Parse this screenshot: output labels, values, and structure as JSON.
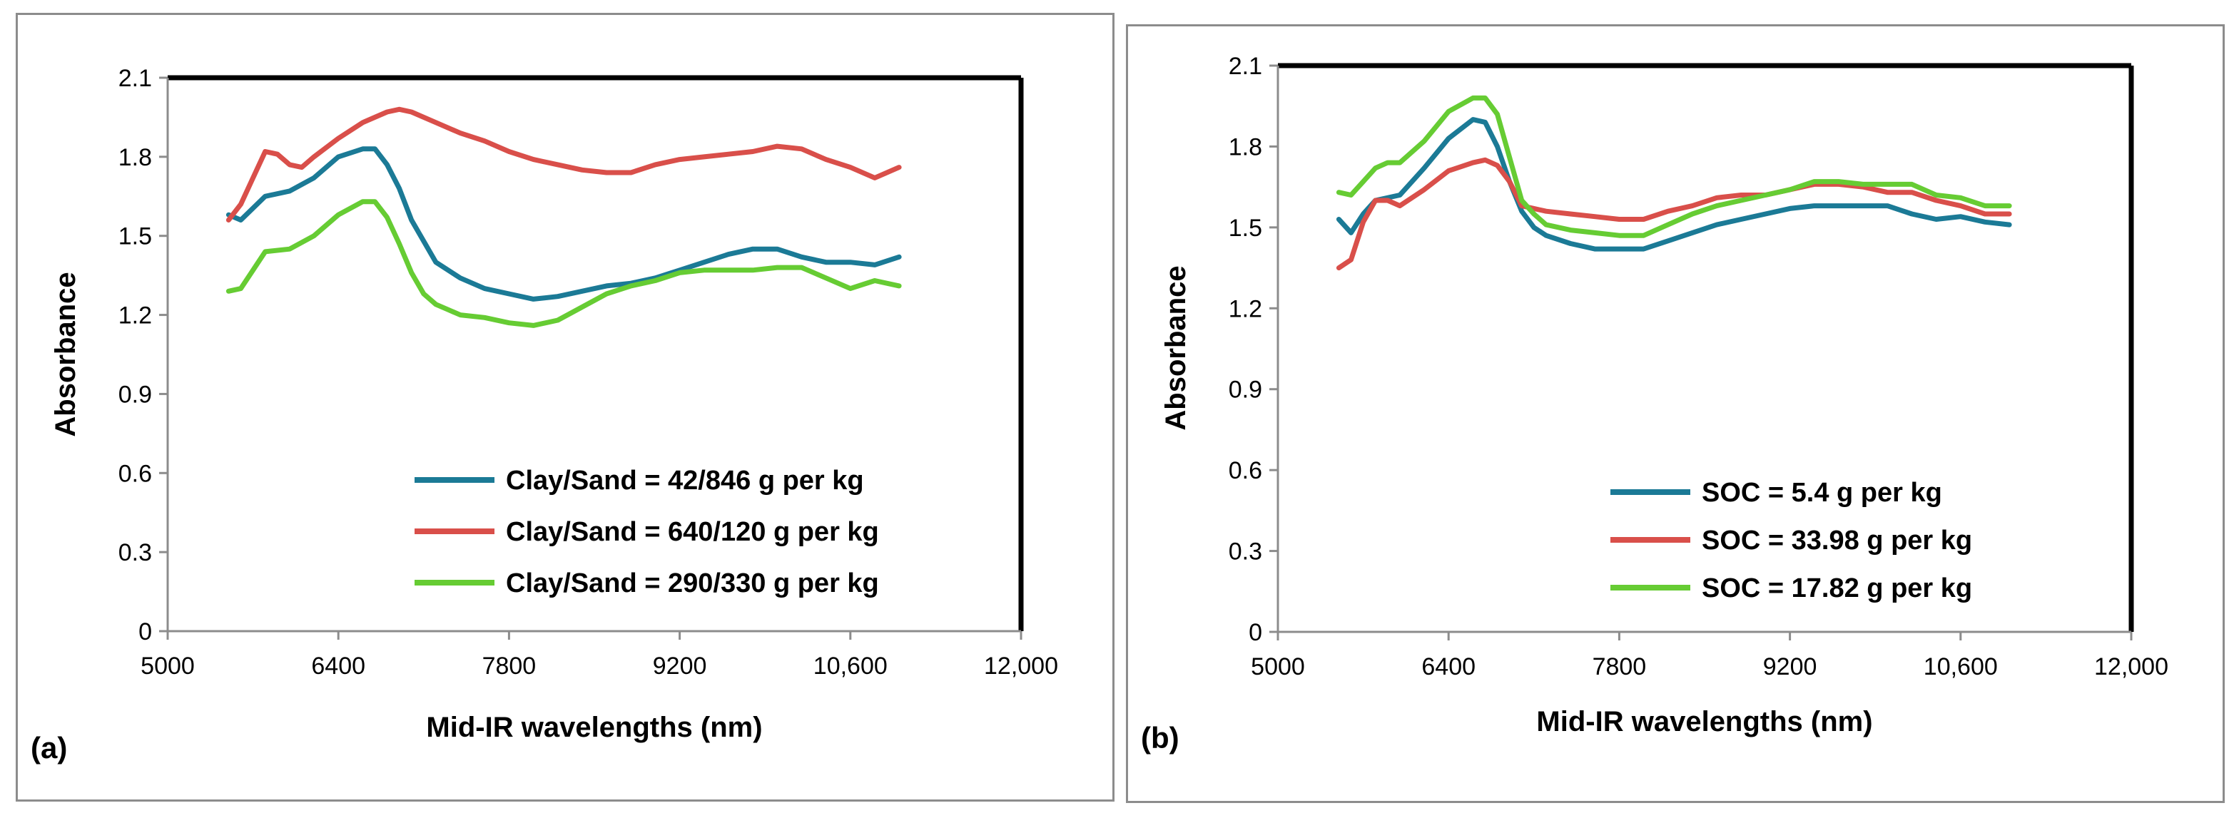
{
  "chart_data": [
    {
      "type": "line",
      "panel_label": "(a)",
      "xlabel": "Mid-IR wavelengths (nm)",
      "ylabel": "Absorbance",
      "xlim": [
        5000,
        12000
      ],
      "ylim": [
        0,
        2.1
      ],
      "x_ticks": [
        5000,
        6400,
        7800,
        9200,
        10600,
        12000
      ],
      "x_tick_labels": [
        "5000",
        "6400",
        "7800",
        "9200",
        "10,600",
        "12,000"
      ],
      "y_ticks": [
        0,
        0.3,
        0.6,
        0.9,
        1.2,
        1.5,
        1.8,
        2.1
      ],
      "y_tick_labels": [
        "0",
        "0.3",
        "0.6",
        "0.9",
        "1.2",
        "1.5",
        "1.8",
        "2.1"
      ],
      "grid": false,
      "legend_position": "bottom-right",
      "series": [
        {
          "name": "Clay/Sand = 42/846 g per kg",
          "color": "#1b7a96",
          "x": [
            5500,
            5600,
            5800,
            6000,
            6200,
            6400,
            6600,
            6700,
            6800,
            6900,
            7000,
            7100,
            7200,
            7400,
            7600,
            7800,
            8000,
            8200,
            8400,
            8600,
            8800,
            9000,
            9200,
            9400,
            9600,
            9800,
            10000,
            10200,
            10400,
            10600,
            10800,
            11000
          ],
          "y": [
            1.58,
            1.56,
            1.65,
            1.67,
            1.72,
            1.8,
            1.83,
            1.83,
            1.77,
            1.68,
            1.56,
            1.48,
            1.4,
            1.34,
            1.3,
            1.28,
            1.26,
            1.27,
            1.29,
            1.31,
            1.32,
            1.34,
            1.37,
            1.4,
            1.43,
            1.45,
            1.45,
            1.42,
            1.4,
            1.4,
            1.39,
            1.42
          ]
        },
        {
          "name": "Clay/Sand = 640/120 g per kg",
          "color": "#d94f4a",
          "x": [
            5500,
            5600,
            5700,
            5800,
            5900,
            6000,
            6100,
            6200,
            6400,
            6600,
            6800,
            6900,
            7000,
            7200,
            7400,
            7600,
            7800,
            8000,
            8200,
            8400,
            8600,
            8800,
            9000,
            9200,
            9400,
            9600,
            9800,
            10000,
            10200,
            10400,
            10600,
            10800,
            11000
          ],
          "y": [
            1.56,
            1.62,
            1.72,
            1.82,
            1.81,
            1.77,
            1.76,
            1.8,
            1.87,
            1.93,
            1.97,
            1.98,
            1.97,
            1.93,
            1.89,
            1.86,
            1.82,
            1.79,
            1.77,
            1.75,
            1.74,
            1.74,
            1.77,
            1.79,
            1.8,
            1.81,
            1.82,
            1.84,
            1.83,
            1.79,
            1.76,
            1.72,
            1.76
          ]
        },
        {
          "name": "Clay/Sand = 290/330 g per kg",
          "color": "#66cc33",
          "x": [
            5500,
            5600,
            5700,
            5800,
            6000,
            6200,
            6400,
            6600,
            6700,
            6800,
            6900,
            7000,
            7100,
            7200,
            7300,
            7400,
            7600,
            7800,
            8000,
            8200,
            8400,
            8600,
            8800,
            9000,
            9200,
            9400,
            9600,
            9800,
            10000,
            10200,
            10400,
            10600,
            10800,
            11000
          ],
          "y": [
            1.29,
            1.3,
            1.37,
            1.44,
            1.45,
            1.5,
            1.58,
            1.63,
            1.63,
            1.57,
            1.47,
            1.36,
            1.28,
            1.24,
            1.22,
            1.2,
            1.19,
            1.17,
            1.16,
            1.18,
            1.23,
            1.28,
            1.31,
            1.33,
            1.36,
            1.37,
            1.37,
            1.37,
            1.38,
            1.38,
            1.34,
            1.3,
            1.33,
            1.31
          ]
        }
      ]
    },
    {
      "type": "line",
      "panel_label": "(b)",
      "xlabel": "Mid-IR wavelengths (nm)",
      "ylabel": "Absorbance",
      "xlim": [
        5000,
        12000
      ],
      "ylim": [
        0,
        2.1
      ],
      "x_ticks": [
        5000,
        6400,
        7800,
        9200,
        10600,
        12000
      ],
      "x_tick_labels": [
        "5000",
        "6400",
        "7800",
        "9200",
        "10,600",
        "12,000"
      ],
      "y_ticks": [
        0,
        0.3,
        0.6,
        0.9,
        1.2,
        1.5,
        1.8,
        2.1
      ],
      "y_tick_labels": [
        "0",
        "0.3",
        "0.6",
        "0.9",
        "1.2",
        "1.5",
        "1.8",
        "2.1"
      ],
      "grid": false,
      "legend_position": "bottom-right",
      "series": [
        {
          "name": "SOC = 5.4 g per kg",
          "color": "#1b7a96",
          "x": [
            5500,
            5600,
            5700,
            5800,
            6000,
            6200,
            6400,
            6600,
            6700,
            6800,
            6900,
            7000,
            7100,
            7200,
            7400,
            7600,
            7800,
            8000,
            8200,
            8400,
            8600,
            8800,
            9000,
            9200,
            9400,
            9600,
            9800,
            10000,
            10200,
            10400,
            10600,
            10800,
            11000
          ],
          "y": [
            1.53,
            1.48,
            1.55,
            1.6,
            1.62,
            1.72,
            1.83,
            1.9,
            1.89,
            1.8,
            1.67,
            1.56,
            1.5,
            1.47,
            1.44,
            1.42,
            1.42,
            1.42,
            1.45,
            1.48,
            1.51,
            1.53,
            1.55,
            1.57,
            1.58,
            1.58,
            1.58,
            1.58,
            1.55,
            1.53,
            1.54,
            1.52,
            1.51
          ]
        },
        {
          "name": "SOC = 33.98 g per kg",
          "color": "#d94f4a",
          "x": [
            5500,
            5600,
            5700,
            5800,
            5900,
            6000,
            6200,
            6400,
            6600,
            6700,
            6800,
            6900,
            7000,
            7200,
            7400,
            7600,
            7800,
            8000,
            8200,
            8400,
            8600,
            8800,
            9000,
            9200,
            9400,
            9600,
            9800,
            10000,
            10200,
            10400,
            10600,
            10800,
            11000
          ],
          "y": [
            1.35,
            1.38,
            1.52,
            1.6,
            1.6,
            1.58,
            1.64,
            1.71,
            1.74,
            1.75,
            1.73,
            1.67,
            1.58,
            1.56,
            1.55,
            1.54,
            1.53,
            1.53,
            1.56,
            1.58,
            1.61,
            1.62,
            1.62,
            1.64,
            1.66,
            1.66,
            1.65,
            1.63,
            1.63,
            1.6,
            1.58,
            1.55,
            1.55
          ]
        },
        {
          "name": "SOC = 17.82 g per kg",
          "color": "#66cc33",
          "x": [
            5500,
            5600,
            5700,
            5800,
            5900,
            6000,
            6200,
            6400,
            6600,
            6700,
            6800,
            6900,
            7000,
            7100,
            7200,
            7400,
            7600,
            7800,
            8000,
            8200,
            8400,
            8600,
            8800,
            9000,
            9200,
            9400,
            9600,
            9800,
            10000,
            10200,
            10400,
            10600,
            10800,
            11000
          ],
          "y": [
            1.63,
            1.62,
            1.67,
            1.72,
            1.74,
            1.74,
            1.82,
            1.93,
            1.98,
            1.98,
            1.92,
            1.76,
            1.6,
            1.55,
            1.51,
            1.49,
            1.48,
            1.47,
            1.47,
            1.51,
            1.55,
            1.58,
            1.6,
            1.62,
            1.64,
            1.67,
            1.67,
            1.66,
            1.66,
            1.66,
            1.62,
            1.61,
            1.58,
            1.58
          ]
        }
      ]
    }
  ]
}
